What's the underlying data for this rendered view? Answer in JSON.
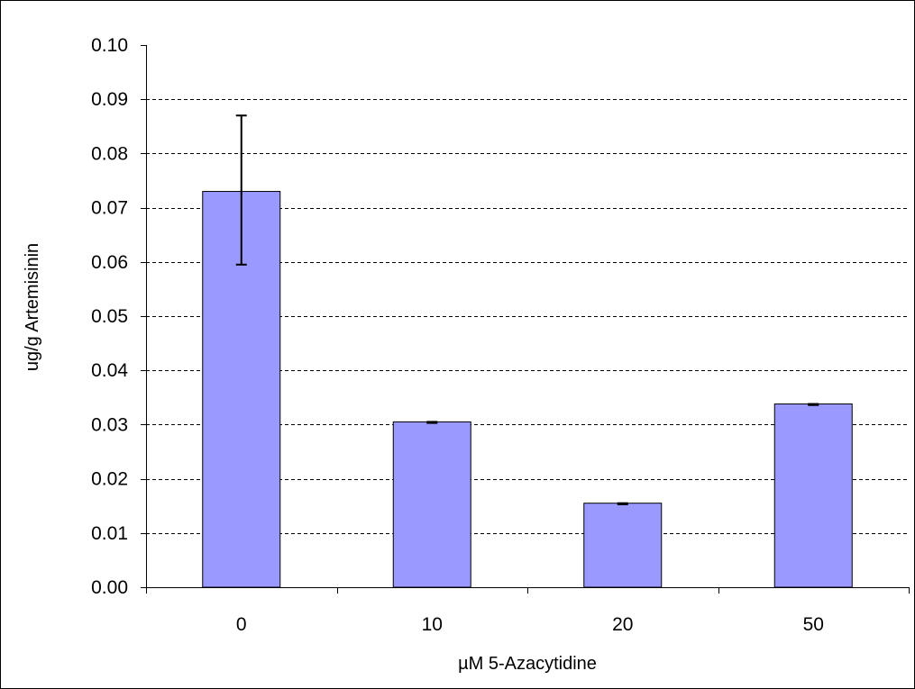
{
  "chart_data": {
    "type": "bar",
    "title": "",
    "xlabel": "µM 5-Azacytidine",
    "ylabel": "ug/g Artemisinin",
    "categories": [
      "0",
      "10",
      "20",
      "50"
    ],
    "values": [
      0.073,
      0.0305,
      0.0155,
      0.0338
    ],
    "error_bars": [
      {
        "low": 0.0595,
        "high": 0.087
      },
      {
        "low": 0.0303,
        "high": 0.0305
      },
      {
        "low": 0.0153,
        "high": 0.0155
      },
      {
        "low": 0.0336,
        "high": 0.0338
      }
    ],
    "ylim": [
      0,
      0.1
    ],
    "yticks": [
      0.0,
      0.01,
      0.02,
      0.03,
      0.04,
      0.05,
      0.06,
      0.07,
      0.08,
      0.09,
      0.1
    ],
    "ytick_labels": [
      "0.00",
      "0.01",
      "0.02",
      "0.03",
      "0.04",
      "0.05",
      "0.06",
      "0.07",
      "0.08",
      "0.09",
      "0.10"
    ],
    "grid": "horizontal dashed",
    "legend": "none",
    "bar_color": "#9999ff"
  }
}
